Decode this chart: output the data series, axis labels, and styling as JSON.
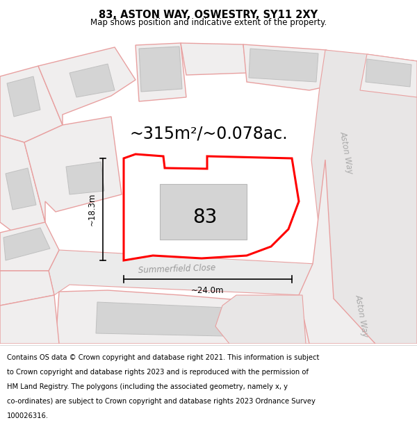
{
  "title": "83, ASTON WAY, OSWESTRY, SY11 2XY",
  "subtitle": "Map shows position and indicative extent of the property.",
  "area_label": "~315m²/~0.078ac.",
  "plot_number": "83",
  "dim_width": "~24.0m",
  "dim_height": "~18.3m",
  "street1": "Summerfield Close",
  "street2": "Aston Way",
  "street3": "Aston Way",
  "copyright_text": "Contains OS data © Crown copyright and database right 2021. This information is subject to Crown copyright and database rights 2023 and is reproduced with the permission of HM Land Registry. The polygons (including the associated geometry, namely x, y co-ordinates) are subject to Crown copyright and database rights 2023 Ordnance Survey 100026316.",
  "bg_color": "#eeecec",
  "plot_fill": "#ffffff",
  "plot_edge": "#ff0000",
  "building_fill": "#d4d4d4",
  "parcel_edge": "#e8a0a0",
  "parcel_fill": "#f0eeee",
  "road_fill": "#ffffff",
  "footer_bg": "#ffffff",
  "title_fontsize": 10.5,
  "subtitle_fontsize": 8.5,
  "area_fontsize": 17,
  "plot_num_fontsize": 20,
  "street_fontsize": 8.5,
  "footer_fontsize": 7.2,
  "dim_fontsize": 8.5
}
